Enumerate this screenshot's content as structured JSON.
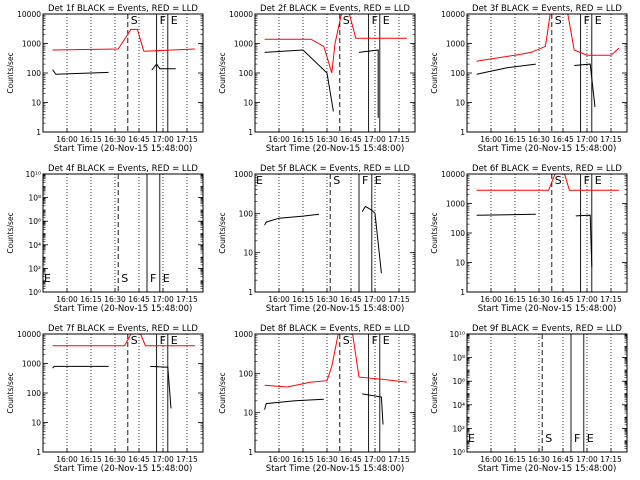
{
  "chart_data": [
    {
      "type": "line",
      "title": "Det 1f BLACK = Events, RED = LLD",
      "xlabel": "Start Time (20-Nov-15 15:48:00)",
      "ylabel": "Counts/sec",
      "yscale": "log",
      "ylim": [
        1,
        10000
      ],
      "ytick_labels": [
        "1",
        "10",
        "100",
        "1000",
        "10000"
      ],
      "x_tick_labels": [
        "16:00",
        "16:15",
        "16:30",
        "16:45",
        "17:00",
        "17:15"
      ],
      "markers": [
        {
          "label": "S",
          "x": "16:38"
        },
        {
          "label": "F",
          "x": "16:56"
        },
        {
          "label": "E",
          "x": "17:03"
        }
      ],
      "series": [
        {
          "name": "RED",
          "color": "#ff0000",
          "segments": [
            [
              [
                "15:51",
                600
              ],
              [
                "16:32",
                650
              ],
              [
                "16:40",
                3000
              ],
              [
                "16:44",
                3000
              ],
              [
                "16:48",
                550
              ],
              [
                "17:20",
                650
              ]
            ]
          ]
        },
        {
          "name": "BLACK",
          "color": "#000000",
          "segments": [
            [
              [
                "15:51",
                130
              ],
              [
                "15:53",
                90
              ],
              [
                "16:26",
                105
              ]
            ],
            [
              [
                "16:53",
                125
              ],
              [
                "16:56",
                200
              ],
              [
                "16:58",
                140
              ],
              [
                "17:08",
                140
              ]
            ]
          ]
        }
      ]
    },
    {
      "type": "line",
      "title": "Det 2f BLACK = Events, RED = LLD",
      "xlabel": "Start Time (20-Nov-15 15:48:00)",
      "ylabel": "Counts/sec",
      "yscale": "log",
      "ylim": [
        1,
        10000
      ],
      "ytick_labels": [
        "1",
        "10",
        "100",
        "1000",
        "10000"
      ],
      "x_tick_labels": [
        "16:00",
        "16:15",
        "16:30",
        "16:45",
        "17:00",
        "17:15"
      ],
      "markers": [
        {
          "label": "S",
          "x": "16:38"
        },
        {
          "label": "F",
          "x": "16:56"
        },
        {
          "label": "E",
          "x": "17:03"
        }
      ],
      "series": [
        {
          "name": "RED",
          "color": "#ff0000",
          "segments": [
            [
              [
                "15:51",
                1400
              ],
              [
                "16:20",
                1400
              ],
              [
                "16:28",
                800
              ],
              [
                "16:33",
                100
              ],
              [
                "16:35",
                1000
              ],
              [
                "16:39",
                10000
              ],
              [
                "16:44",
                10000
              ],
              [
                "16:48",
                1500
              ],
              [
                "17:20",
                1500
              ]
            ]
          ]
        },
        {
          "name": "BLACK",
          "color": "#000000",
          "segments": [
            [
              [
                "15:51",
                500
              ],
              [
                "16:15",
                600
              ],
              [
                "16:30",
                100
              ],
              [
                "16:34",
                5
              ]
            ],
            [
              [
                "16:50",
                500
              ],
              [
                "17:02",
                600
              ],
              [
                "17:02",
                3
              ]
            ]
          ]
        }
      ]
    },
    {
      "type": "line",
      "title": "Det 3f BLACK = Events, RED = LLD",
      "xlabel": "Start Time (20-Nov-15 15:48:00)",
      "ylabel": "Counts/sec",
      "yscale": "log",
      "ylim": [
        1,
        10000
      ],
      "ytick_labels": [
        "1",
        "10",
        "100",
        "1000",
        "10000"
      ],
      "x_tick_labels": [
        "16:00",
        "16:15",
        "16:30",
        "16:45",
        "17:00",
        "17:15"
      ],
      "markers": [
        {
          "label": "S",
          "x": "16:38"
        },
        {
          "label": "F",
          "x": "16:56"
        },
        {
          "label": "E",
          "x": "17:03"
        }
      ],
      "series": [
        {
          "name": "RED",
          "color": "#ff0000",
          "segments": [
            [
              [
                "15:51",
                250
              ],
              [
                "16:00",
                300
              ],
              [
                "16:15",
                400
              ],
              [
                "16:25",
                500
              ],
              [
                "16:34",
                800
              ],
              [
                "16:37",
                10000
              ],
              [
                "16:48",
                10000
              ],
              [
                "16:52",
                600
              ],
              [
                "17:00",
                400
              ],
              [
                "17:15",
                400
              ],
              [
                "17:20",
                700
              ]
            ]
          ]
        },
        {
          "name": "BLACK",
          "color": "#000000",
          "segments": [
            [
              [
                "15:51",
                90
              ],
              [
                "16:10",
                150
              ],
              [
                "16:28",
                200
              ]
            ],
            [
              [
                "16:52",
                180
              ],
              [
                "17:02",
                200
              ],
              [
                "17:05",
                7
              ]
            ]
          ]
        }
      ]
    },
    {
      "type": "line",
      "title": "Det 4f BLACK = Events, RED = LLD",
      "xlabel": "Start Time (20-Nov-15 15:48:00)",
      "ylabel": "Counts/sec",
      "yscale": "log",
      "ylim": [
        1,
        10000000000
      ],
      "ytick_labels": [
        "10⁰",
        "10²",
        "10⁴",
        "10⁶",
        "10⁸",
        "10¹⁰"
      ],
      "x_tick_labels": [
        "16:00",
        "16:15",
        "16:30",
        "16:45",
        "17:00",
        "17:15"
      ],
      "markers": [
        {
          "label": "E",
          "x": "15:47"
        },
        {
          "label": "S",
          "x": "16:32"
        },
        {
          "label": "F",
          "x": "16:50"
        },
        {
          "label": "E",
          "x": "16:58"
        }
      ],
      "series": []
    },
    {
      "type": "line",
      "title": "Det 5f BLACK = Events, RED = LLD",
      "xlabel": "Start Time (20-Nov-15 15:48:00)",
      "ylabel": "Counts/sec",
      "yscale": "log",
      "ylim": [
        1,
        1000
      ],
      "ytick_labels": [
        "1",
        "10",
        "100",
        "1000"
      ],
      "x_tick_labels": [
        "16:00",
        "16:15",
        "16:30",
        "16:45",
        "17:00",
        "17:15"
      ],
      "markers": [
        {
          "label": "E",
          "x": "15:47"
        },
        {
          "label": "S",
          "x": "16:32"
        },
        {
          "label": "F",
          "x": "16:50"
        },
        {
          "label": "E",
          "x": "16:58"
        }
      ],
      "series": [
        {
          "name": "RED",
          "color": "#ff0000",
          "segments": [
            [
              [
                "15:51",
                1000
              ],
              [
                "17:20",
                1000
              ]
            ]
          ]
        },
        {
          "name": "BLACK",
          "color": "#000000",
          "segments": [
            [
              [
                "15:51",
                50
              ],
              [
                "15:52",
                60
              ],
              [
                "16:00",
                75
              ],
              [
                "16:15",
                85
              ],
              [
                "16:25",
                95
              ]
            ],
            [
              [
                "16:52",
                110
              ],
              [
                "16:54",
                150
              ],
              [
                "16:58",
                120
              ],
              [
                "17:00",
                100
              ],
              [
                "17:04",
                3
              ]
            ]
          ]
        }
      ]
    },
    {
      "type": "line",
      "title": "Det 6f BLACK = Events, RED = LLD",
      "xlabel": "Start Time (20-Nov-15 15:48:00)",
      "ylabel": "Counts/sec",
      "yscale": "log",
      "ylim": [
        1,
        10000
      ],
      "ytick_labels": [
        "1",
        "10",
        "100",
        "1000",
        "10000"
      ],
      "x_tick_labels": [
        "16:00",
        "16:15",
        "16:30",
        "16:45",
        "17:00",
        "17:15"
      ],
      "markers": [
        {
          "label": "S",
          "x": "16:38"
        },
        {
          "label": "F",
          "x": "16:56"
        },
        {
          "label": "E",
          "x": "17:03"
        }
      ],
      "series": [
        {
          "name": "RED",
          "color": "#ff0000",
          "segments": [
            [
              [
                "15:51",
                2800
              ],
              [
                "16:36",
                2800
              ],
              [
                "16:40",
                10000
              ],
              [
                "16:46",
                10000
              ],
              [
                "16:49",
                2800
              ],
              [
                "17:20",
                2800
              ]
            ]
          ]
        },
        {
          "name": "BLACK",
          "color": "#000000",
          "segments": [
            [
              [
                "15:51",
                400
              ],
              [
                "16:28",
                430
              ]
            ],
            [
              [
                "16:53",
                380
              ],
              [
                "17:02",
                400
              ],
              [
                "17:03",
                7
              ]
            ]
          ]
        }
      ]
    },
    {
      "type": "line",
      "title": "Det 7f BLACK = Events, RED = LLD",
      "xlabel": "Start Time (20-Nov-15 15:48:00)",
      "ylabel": "Counts/sec",
      "yscale": "log",
      "ylim": [
        1,
        10000
      ],
      "ytick_labels": [
        "1",
        "10",
        "100",
        "1000",
        "10000"
      ],
      "x_tick_labels": [
        "16:00",
        "16:15",
        "16:30",
        "16:45",
        "17:00",
        "17:15"
      ],
      "markers": [
        {
          "label": "S",
          "x": "16:38"
        },
        {
          "label": "F",
          "x": "16:56"
        },
        {
          "label": "E",
          "x": "17:03"
        }
      ],
      "series": [
        {
          "name": "RED",
          "color": "#ff0000",
          "segments": [
            [
              [
                "15:51",
                4000
              ],
              [
                "16:36",
                4000
              ],
              [
                "16:40",
                10000
              ],
              [
                "16:46",
                10000
              ],
              [
                "16:49",
                4000
              ],
              [
                "17:20",
                4000
              ]
            ]
          ]
        },
        {
          "name": "BLACK",
          "color": "#000000",
          "segments": [
            [
              [
                "15:51",
                700
              ],
              [
                "15:52",
                800
              ],
              [
                "16:26",
                800
              ]
            ],
            [
              [
                "16:52",
                800
              ],
              [
                "17:03",
                750
              ],
              [
                "17:05",
                30
              ]
            ]
          ]
        }
      ]
    },
    {
      "type": "line",
      "title": "Det 8f BLACK = Events, RED = LLD",
      "xlabel": "Start Time (20-Nov-15 15:48:00)",
      "ylabel": "Counts/sec",
      "yscale": "log",
      "ylim": [
        1,
        1000
      ],
      "ytick_labels": [
        "1",
        "10",
        "100",
        "1000"
      ],
      "x_tick_labels": [
        "16:00",
        "16:15",
        "16:30",
        "16:45",
        "17:00",
        "17:15"
      ],
      "markers": [
        {
          "label": "S",
          "x": "16:38"
        },
        {
          "label": "F",
          "x": "16:56"
        },
        {
          "label": "E",
          "x": "17:03"
        }
      ],
      "series": [
        {
          "name": "RED",
          "color": "#ff0000",
          "segments": [
            [
              [
                "15:51",
                50
              ],
              [
                "16:05",
                45
              ],
              [
                "16:20",
                60
              ],
              [
                "16:30",
                65
              ],
              [
                "16:33",
                150
              ],
              [
                "16:37",
                1000
              ],
              [
                "16:46",
                1000
              ],
              [
                "16:50",
                80
              ],
              [
                "17:05",
                70
              ],
              [
                "17:20",
                60
              ]
            ]
          ]
        },
        {
          "name": "BLACK",
          "color": "#000000",
          "segments": [
            [
              [
                "15:51",
                12
              ],
              [
                "15:52",
                17
              ],
              [
                "16:10",
                20
              ],
              [
                "16:28",
                22
              ]
            ],
            [
              [
                "16:52",
                30
              ],
              [
                "17:04",
                25
              ],
              [
                "17:05",
                5
              ]
            ]
          ]
        }
      ]
    },
    {
      "type": "line",
      "title": "Det 9f BLACK = Events, RED = LLD",
      "xlabel": "Start Time (20-Nov-15 15:48:00)",
      "ylabel": "Counts/sec",
      "yscale": "log",
      "ylim": [
        1,
        10000000000
      ],
      "ytick_labels": [
        "10⁰",
        "10²",
        "10⁴",
        "10⁶",
        "10⁸",
        "10¹⁰"
      ],
      "x_tick_labels": [
        "16:00",
        "16:15",
        "16:30",
        "16:45",
        "17:00",
        "17:15"
      ],
      "markers": [
        {
          "label": "E",
          "x": "15:47"
        },
        {
          "label": "S",
          "x": "16:32"
        },
        {
          "label": "F",
          "x": "16:50"
        },
        {
          "label": "E",
          "x": "16:58"
        }
      ],
      "series": []
    }
  ]
}
